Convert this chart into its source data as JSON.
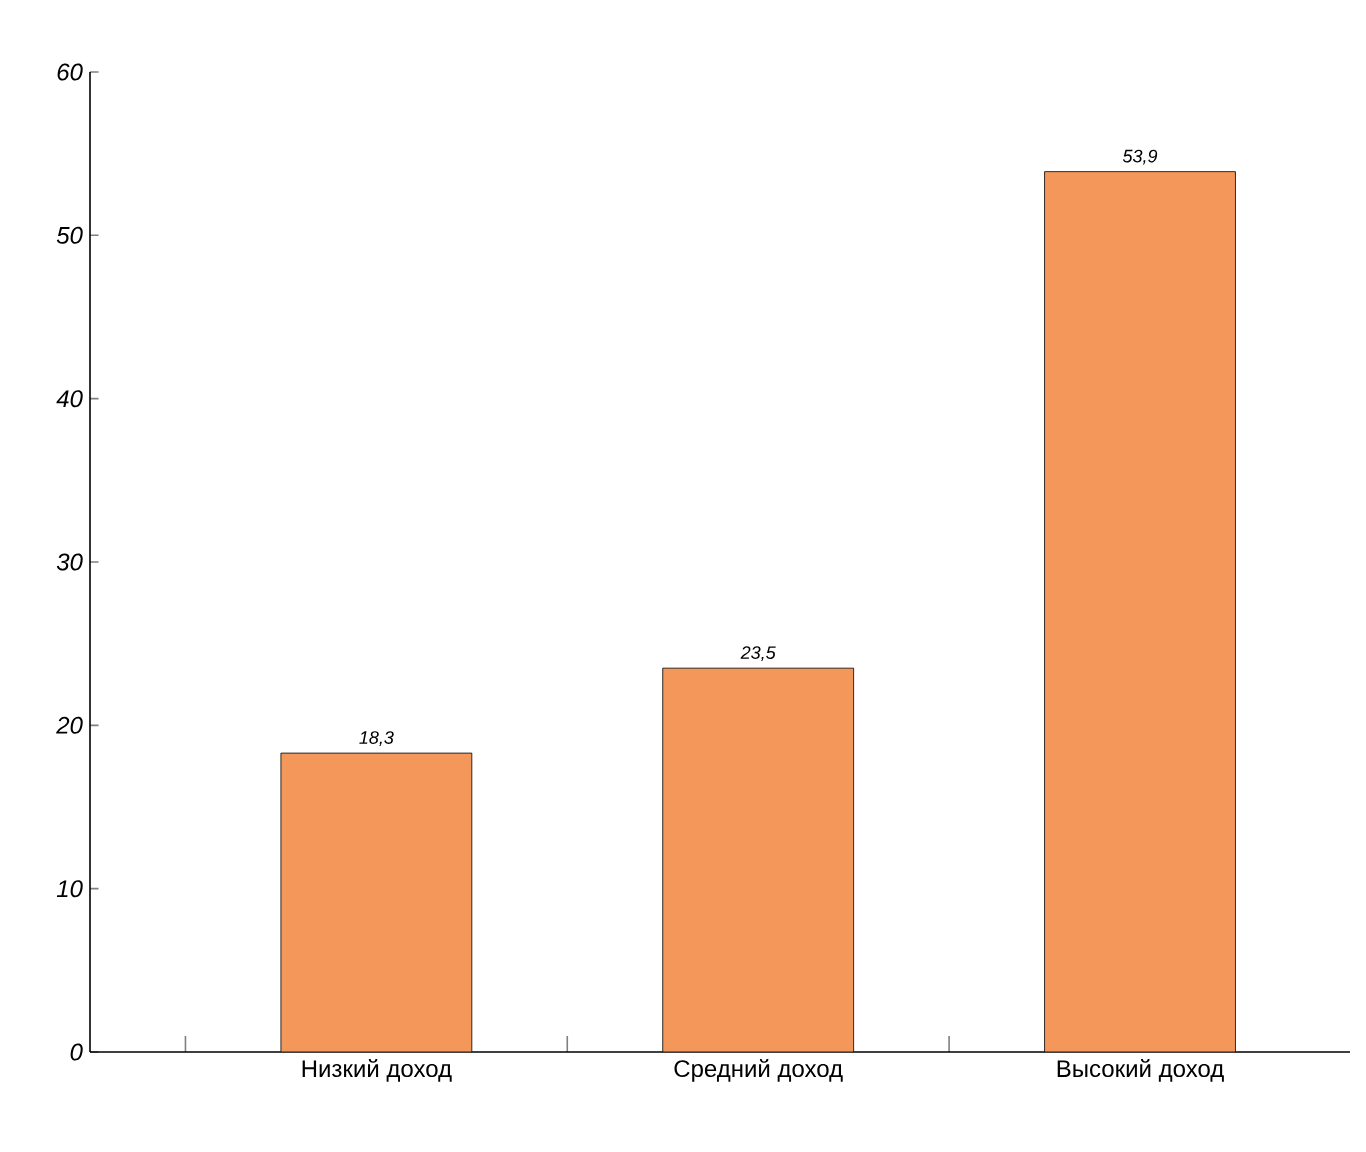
{
  "chart_data": {
    "type": "bar",
    "categories": [
      "Низкий доход",
      "Средний доход",
      "Высокий доход"
    ],
    "values": [
      18.3,
      23.5,
      53.9
    ],
    "value_labels": [
      "18,3",
      "23,5",
      "53,9"
    ],
    "color": "#f4975b",
    "ylim": [
      0,
      60
    ],
    "yticks": [
      0,
      10,
      20,
      30,
      40,
      50,
      60
    ]
  }
}
